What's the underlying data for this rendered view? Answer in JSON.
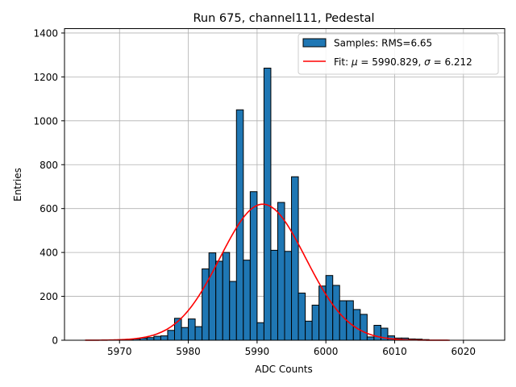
{
  "chart_data": {
    "type": "bar",
    "title": "Run 675, channel111, Pedestal",
    "xlabel": "ADC Counts",
    "ylabel": "Entries",
    "xlim": [
      5962.0,
      6026.0
    ],
    "ylim": [
      0,
      1420
    ],
    "xticks": [
      5970,
      5980,
      5990,
      6000,
      6010,
      6020
    ],
    "yticks": [
      0,
      200,
      400,
      600,
      800,
      1000,
      1200,
      1400
    ],
    "grid": true,
    "legend_position": "top-right",
    "bin_width": 1,
    "bins": {
      "name": "Samples: RMS=6.65",
      "color": "#1f77b4",
      "edge_color": "#000000",
      "bin_starts": [
        5971,
        5972,
        5973,
        5974,
        5975,
        5976,
        5977,
        5978,
        5979,
        5980,
        5981,
        5982,
        5983,
        5984,
        5985,
        5986,
        5987,
        5988,
        5989,
        5990,
        5991,
        5992,
        5993,
        5994,
        5995,
        5996,
        5997,
        5998,
        5999,
        6000,
        6001,
        6002,
        6003,
        6004,
        6005,
        6006,
        6007,
        6008,
        6009,
        6010,
        6011,
        6012,
        6013,
        6014
      ],
      "values": [
        3,
        6,
        10,
        12,
        18,
        20,
        45,
        100,
        58,
        97,
        62,
        325,
        398,
        360,
        400,
        268,
        1050,
        365,
        677,
        80,
        1240,
        410,
        628,
        405,
        745,
        215,
        87,
        160,
        247,
        295,
        250,
        180,
        180,
        140,
        118,
        15,
        68,
        55,
        20,
        10,
        10,
        6,
        5,
        3
      ]
    },
    "fit": {
      "name": "Fit: μ = 5990.829, σ = 6.212",
      "legend_prefix": "Fit: ",
      "mu_symbol": "μ",
      "mu_text": " = 5990.829, ",
      "sigma_symbol": "σ",
      "sigma_text": " = 6.212",
      "color": "#ff0000",
      "mu": 5990.829,
      "sigma": 6.212,
      "amplitude": 620,
      "x_range": [
        5965,
        6018
      ]
    }
  }
}
